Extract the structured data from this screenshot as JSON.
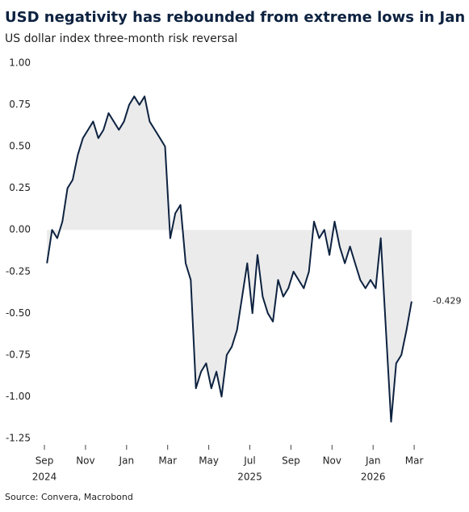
{
  "chart_data": {
    "type": "line",
    "title": "USD negativity has rebounded from extreme lows in Jan",
    "subtitle": "US dollar index three-month risk reversal",
    "source": "Source: Convera, Macrobond",
    "x": [
      "2024-09",
      "2024-09",
      "2024-09",
      "2024-09",
      "2024-10",
      "2024-10",
      "2024-10",
      "2024-10",
      "2024-11",
      "2024-11",
      "2024-11",
      "2024-11",
      "2024-12",
      "2024-12",
      "2024-12",
      "2024-12",
      "2025-01",
      "2025-01",
      "2025-01",
      "2025-01",
      "2025-02",
      "2025-02",
      "2025-02",
      "2025-02",
      "2025-03",
      "2025-03",
      "2025-03",
      "2025-03",
      "2025-04",
      "2025-04",
      "2025-04",
      "2025-04",
      "2025-05",
      "2025-05",
      "2025-05",
      "2025-05",
      "2025-06",
      "2025-06",
      "2025-06",
      "2025-06",
      "2025-07",
      "2025-07",
      "2025-07",
      "2025-07",
      "2025-08",
      "2025-08",
      "2025-08",
      "2025-08",
      "2025-09",
      "2025-09",
      "2025-09",
      "2025-09",
      "2025-10",
      "2025-10",
      "2025-10",
      "2025-10",
      "2025-11",
      "2025-11",
      "2025-11",
      "2025-11",
      "2025-12",
      "2025-12",
      "2025-12",
      "2025-12",
      "2026-01",
      "2026-01",
      "2026-01",
      "2026-01",
      "2026-02",
      "2026-02",
      "2026-02",
      "2026-02"
    ],
    "series": [
      {
        "color": "#0d2240",
        "fill": "#ebebeb",
        "values": [
          -0.2,
          0.0,
          -0.05,
          0.05,
          0.25,
          0.3,
          0.45,
          0.55,
          0.6,
          0.65,
          0.55,
          0.6,
          0.7,
          0.65,
          0.6,
          0.65,
          0.75,
          0.8,
          0.75,
          0.8,
          0.65,
          0.6,
          0.55,
          0.5,
          -0.05,
          0.1,
          0.15,
          -0.2,
          -0.3,
          -0.95,
          -0.85,
          -0.8,
          -0.95,
          -0.85,
          -1.0,
          -0.75,
          -0.7,
          -0.6,
          -0.4,
          -0.2,
          -0.5,
          -0.15,
          -0.4,
          -0.5,
          -0.55,
          -0.3,
          -0.4,
          -0.35,
          -0.25,
          -0.3,
          -0.35,
          -0.25,
          0.05,
          -0.05,
          0.0,
          -0.15,
          0.05,
          -0.1,
          -0.2,
          -0.1,
          -0.2,
          -0.3,
          -0.35,
          -0.3,
          -0.35,
          -0.05,
          -0.6,
          -1.15,
          -0.8,
          -0.75,
          -0.6,
          -0.429
        ]
      }
    ],
    "ylim": [
      -1.25,
      1.0
    ],
    "yticks": [
      {
        "value": 1.0,
        "label": "1.00"
      },
      {
        "value": 0.75,
        "label": "0.75"
      },
      {
        "value": 0.5,
        "label": "0.50"
      },
      {
        "value": 0.25,
        "label": "0.25"
      },
      {
        "value": 0,
        "label": "0.00"
      },
      {
        "value": -0.25,
        "label": "-0.25"
      },
      {
        "value": -0.5,
        "label": "-0.50"
      },
      {
        "value": -0.75,
        "label": "-0.75"
      },
      {
        "value": -1.0,
        "label": "-1.00"
      },
      {
        "value": -1.25,
        "label": "-1.25"
      }
    ],
    "xticks": [
      {
        "value": "2024-09",
        "label": "Sep"
      },
      {
        "value": "2024-11",
        "label": "Nov"
      },
      {
        "value": "2025-01",
        "label": "Jan"
      },
      {
        "value": "2025-03",
        "label": "Mar"
      },
      {
        "value": "2025-05",
        "label": "May"
      },
      {
        "value": "2025-07",
        "label": "Jul"
      },
      {
        "value": "2025-09",
        "label": "Sep"
      },
      {
        "value": "2025-11",
        "label": "Nov"
      },
      {
        "value": "2026-01",
        "label": "Jan"
      },
      {
        "value": "2026-03",
        "label": "Mar"
      }
    ],
    "year_labels": [
      {
        "value": "2024-09",
        "label": "2024"
      },
      {
        "value": "2025-07",
        "label": "2025"
      },
      {
        "value": "2026-01",
        "label": "2026"
      }
    ]
  }
}
